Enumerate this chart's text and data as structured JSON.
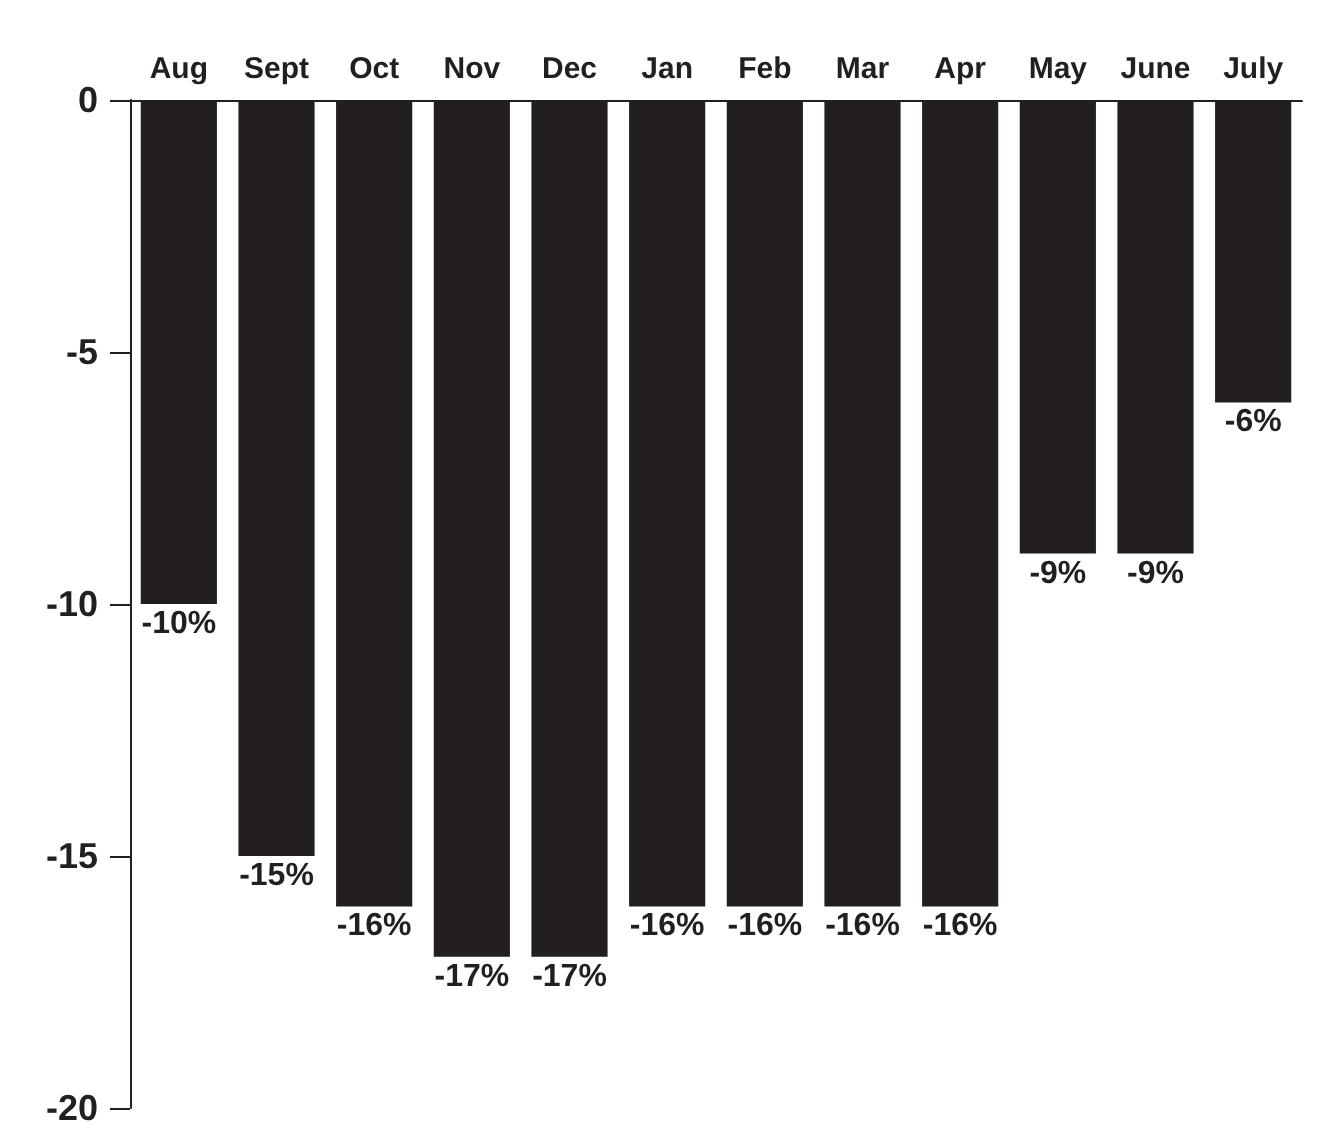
{
  "chart_data": {
    "type": "bar",
    "categories": [
      "Aug",
      "Sept",
      "Oct",
      "Nov",
      "Dec",
      "Jan",
      "Feb",
      "Mar",
      "Apr",
      "May",
      "June",
      "July"
    ],
    "values": [
      -10,
      -15,
      -16,
      -17,
      -17,
      -16,
      -16,
      -16,
      -16,
      -9,
      -9,
      -6
    ],
    "value_labels": [
      "-10%",
      "-15%",
      "-16%",
      "-17%",
      "-17%",
      "-16%",
      "-16%",
      "-16%",
      "-16%",
      "-9%",
      "-9%",
      "-6%"
    ],
    "color": "#231f20",
    "ylim": [
      -20,
      0
    ],
    "yticks": [
      -20,
      -15,
      -10,
      -5,
      0
    ],
    "grid": false
  }
}
